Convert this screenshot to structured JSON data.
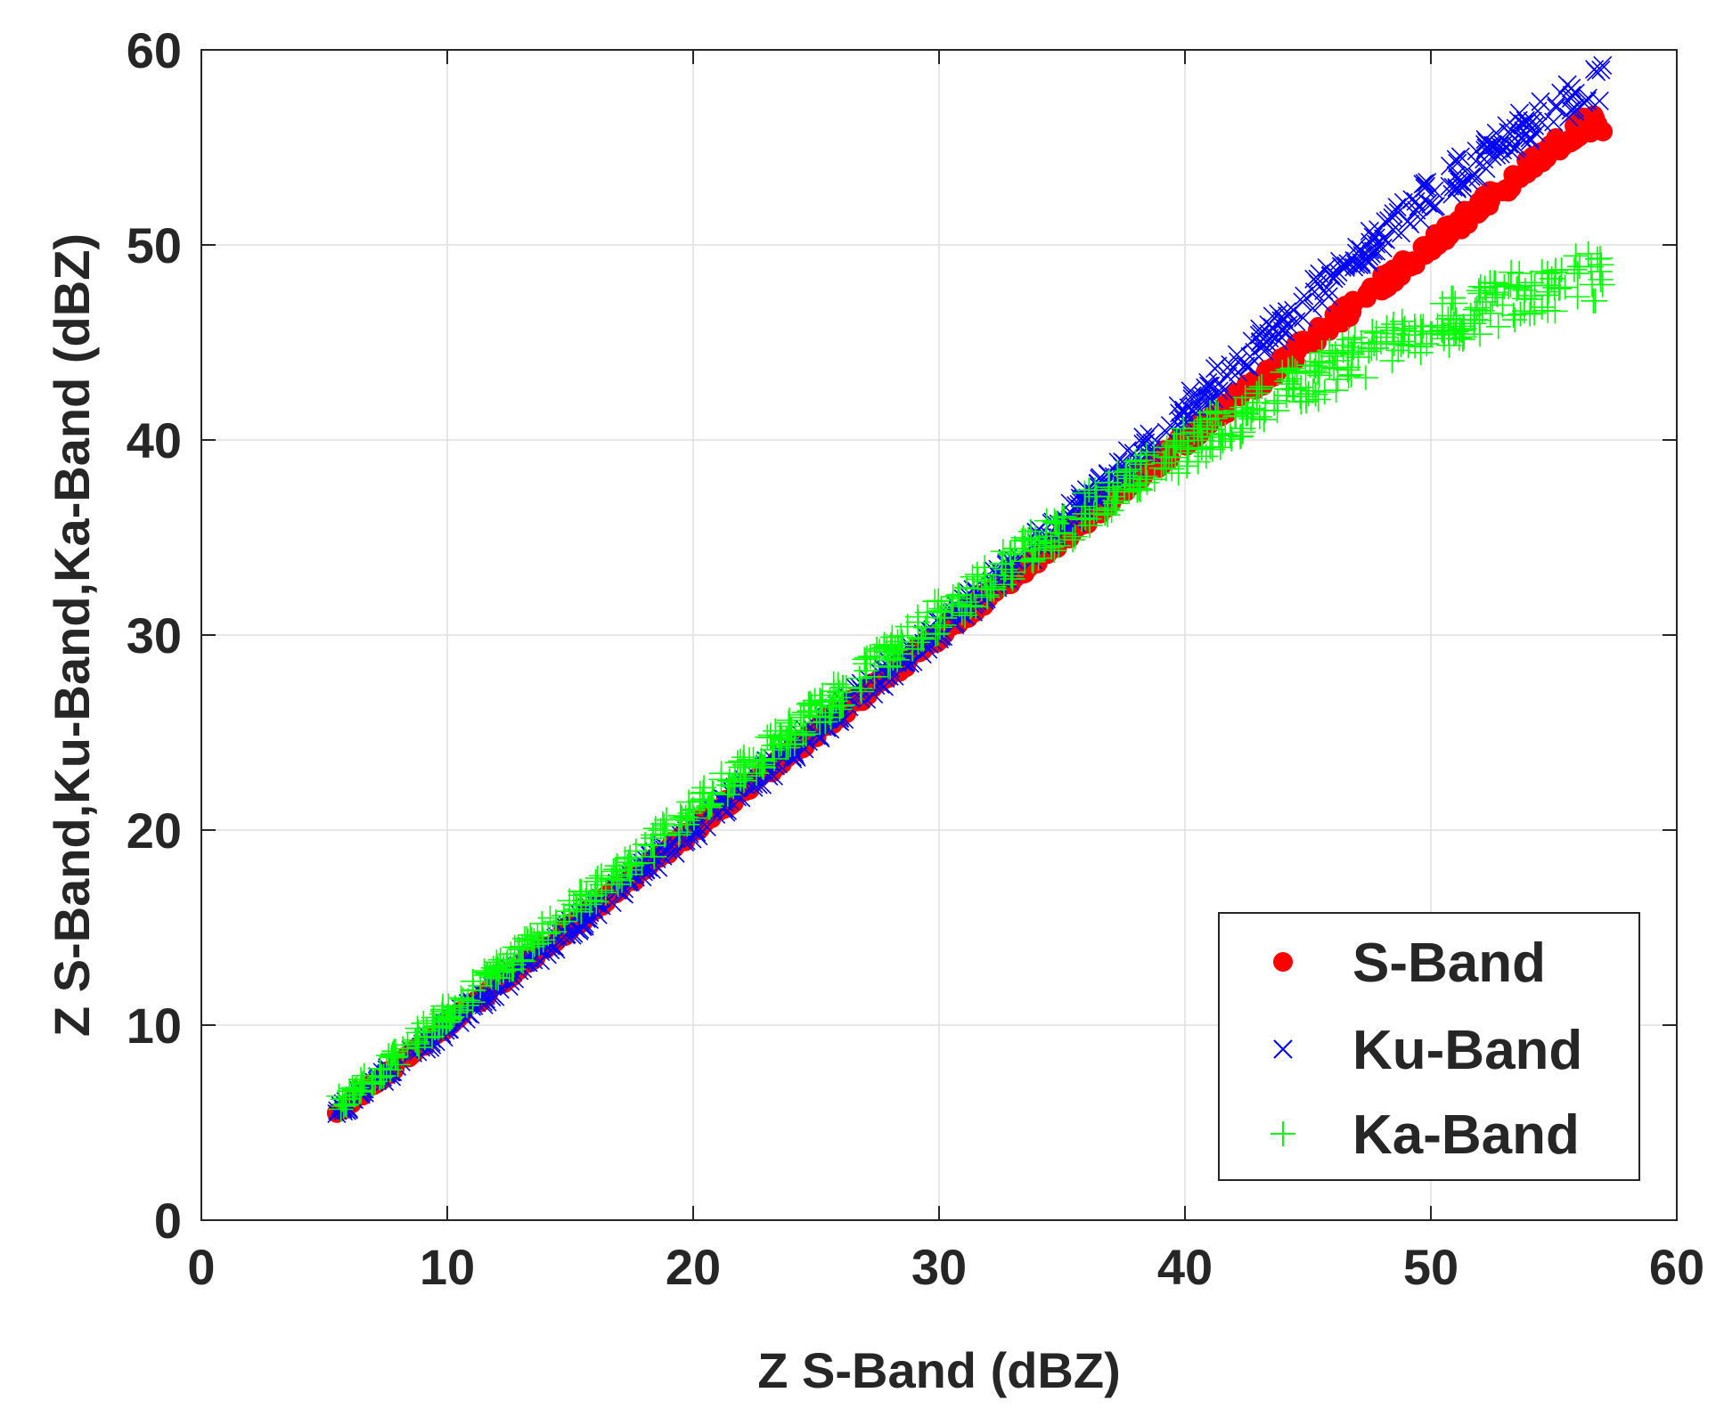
{
  "chart_data": {
    "type": "scatter",
    "title": "",
    "xlabel": "Z S-Band (dBZ)",
    "ylabel": "Z S-Band,Ku-Band,Ka-Band (dBZ)",
    "xlim": [
      0,
      60
    ],
    "ylim": [
      0,
      60
    ],
    "xticks": [
      "0",
      "10",
      "20",
      "30",
      "40",
      "50",
      "60"
    ],
    "yticks": [
      "0",
      "10",
      "20",
      "30",
      "40",
      "50",
      "60"
    ],
    "grid": true,
    "legend_position": "bottom-right",
    "series": [
      {
        "name": "S-Band",
        "marker": "filled-circle",
        "color": "#ff0000",
        "x": [
          5.5,
          8,
          10,
          12,
          14,
          16,
          18,
          20,
          22,
          24,
          26,
          28,
          30,
          32,
          34,
          36,
          38,
          40,
          42,
          44,
          46,
          48,
          50,
          52,
          54,
          56,
          57
        ],
        "y": [
          5.5,
          8,
          10,
          12,
          14,
          16,
          18,
          20,
          22,
          24,
          26,
          28,
          30,
          32,
          34,
          36,
          38,
          40,
          42,
          44,
          46,
          48,
          50,
          52,
          54,
          56,
          56.3
        ]
      },
      {
        "name": "Ku-Band",
        "marker": "x",
        "color": "#0000ff",
        "x": [
          5.5,
          8,
          10,
          12,
          14,
          16,
          18,
          20,
          22,
          24,
          26,
          28,
          30,
          32,
          34,
          36,
          38,
          40,
          42,
          44,
          46,
          48,
          50,
          52,
          54,
          56,
          57
        ],
        "y": [
          5.4,
          7.9,
          9.9,
          11.9,
          13.9,
          15.9,
          18.0,
          20.0,
          22.0,
          24.1,
          26.1,
          28.2,
          30.3,
          32.5,
          34.7,
          36.9,
          39.2,
          41.5,
          43.8,
          46.1,
          48.3,
          50.5,
          52.6,
          54.4,
          56.2,
          57.6,
          58.3
        ]
      },
      {
        "name": "Ka-Band",
        "marker": "plus",
        "color": "#00ff00",
        "x": [
          5.5,
          8,
          10,
          12,
          14,
          16,
          18,
          20,
          22,
          24,
          26,
          28,
          30,
          32,
          34,
          36,
          38,
          40,
          42,
          44,
          46,
          48,
          50,
          52,
          54,
          56,
          57
        ],
        "y": [
          5.8,
          8.5,
          10.6,
          12.7,
          14.8,
          16.9,
          18.9,
          21.0,
          23.0,
          25.0,
          27.0,
          29.0,
          31.0,
          32.8,
          34.6,
          36.4,
          38.0,
          39.6,
          41.0,
          42.4,
          43.6,
          44.8,
          45.8,
          46.7,
          47.6,
          48.3,
          48.3
        ]
      }
    ]
  }
}
